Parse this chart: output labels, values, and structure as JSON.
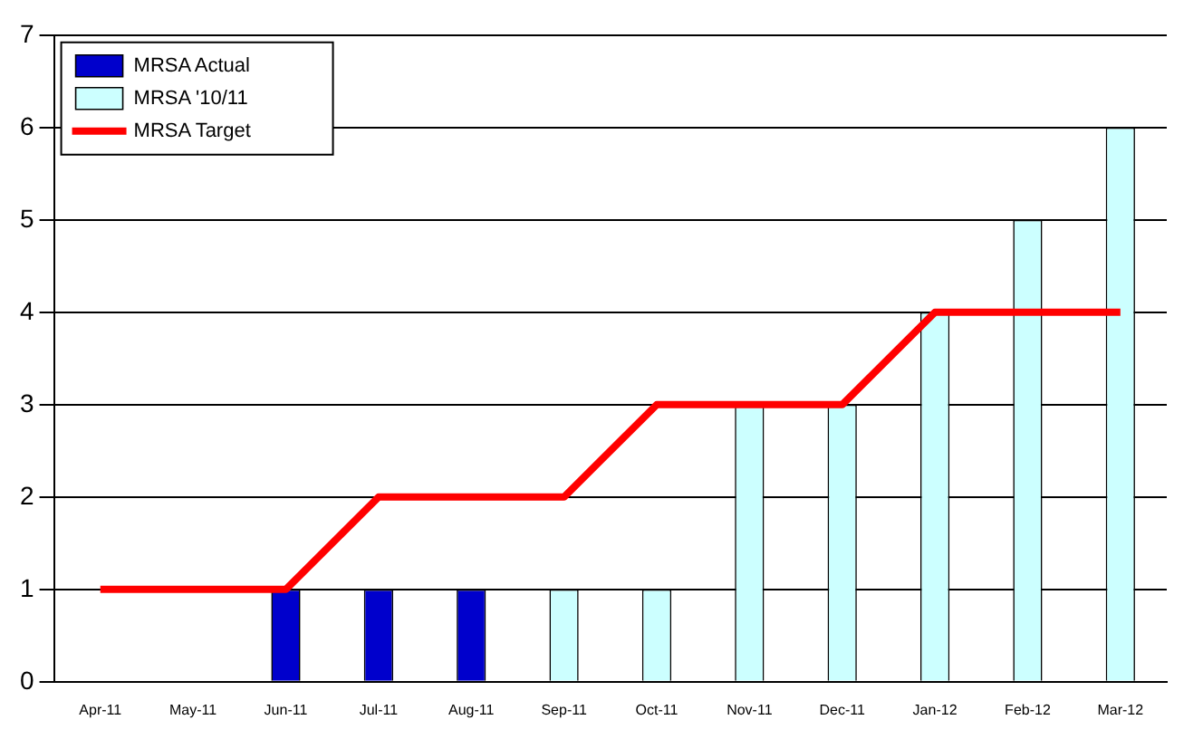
{
  "chart_data": {
    "type": "bar",
    "categories": [
      "Apr-11",
      "May-11",
      "Jun-11",
      "Jul-11",
      "Aug-11",
      "Sep-11",
      "Oct-11",
      "Nov-11",
      "Dec-11",
      "Jan-12",
      "Feb-12",
      "Mar-12"
    ],
    "series": [
      {
        "name": "MRSA Actual",
        "color": "#0000cc",
        "values": [
          null,
          null,
          1,
          1,
          1,
          null,
          null,
          null,
          null,
          null,
          null,
          null
        ]
      },
      {
        "name": "MRSA '10/11",
        "color": "#ccffff",
        "values": [
          null,
          null,
          null,
          null,
          null,
          1,
          1,
          3,
          3,
          4,
          5,
          6
        ]
      },
      {
        "name": "MRSA Target",
        "type": "line",
        "color": "#ff0000",
        "values": [
          1,
          1,
          1,
          2,
          2,
          2,
          3,
          3,
          3,
          4,
          4,
          4
        ]
      }
    ],
    "ylim": [
      0,
      7
    ],
    "yticks": [
      0,
      1,
      2,
      3,
      4,
      5,
      6,
      7
    ],
    "grid": "y",
    "legend": "top left",
    "marker": "none"
  }
}
